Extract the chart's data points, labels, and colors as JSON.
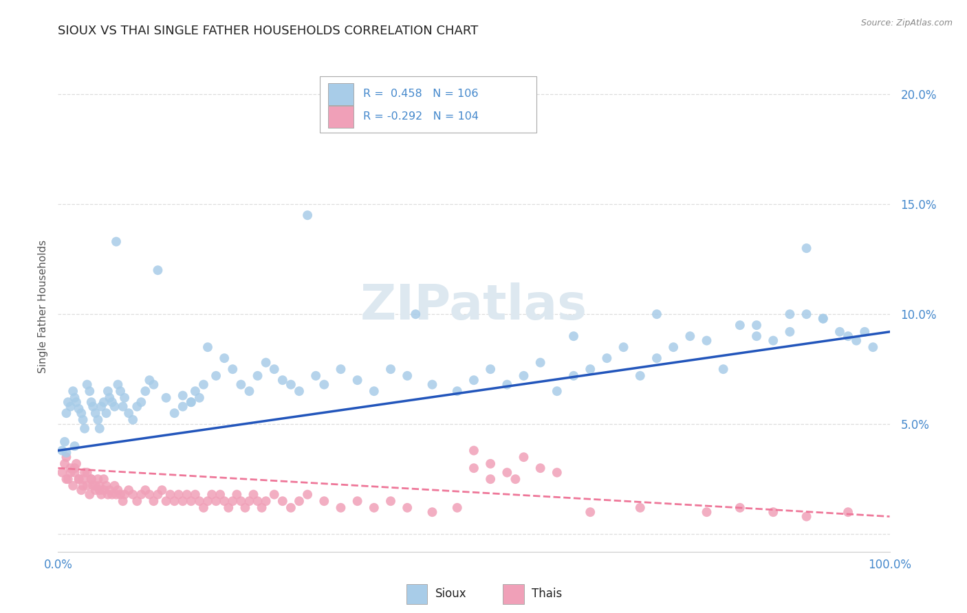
{
  "title": "SIOUX VS THAI SINGLE FATHER HOUSEHOLDS CORRELATION CHART",
  "source": "Source: ZipAtlas.com",
  "ylabel": "Single Father Households",
  "xlim": [
    0.0,
    1.0
  ],
  "ylim": [
    -0.008,
    0.215
  ],
  "sioux_R": 0.458,
  "sioux_N": 106,
  "thai_R": -0.292,
  "thai_N": 104,
  "sioux_color": "#a8cce8",
  "thai_color": "#f0a0b8",
  "sioux_edge_color": "#88aacc",
  "thai_edge_color": "#cc8898",
  "sioux_line_color": "#2255bb",
  "thai_line_color": "#ee7799",
  "watermark_color": "#dde8f0",
  "watermark": "ZIPatlas",
  "legend_sioux": "Sioux",
  "legend_thai": "Thais",
  "tick_color": "#4488cc",
  "title_color": "#222222",
  "source_color": "#888888",
  "ylabel_color": "#555555",
  "grid_color": "#dddddd",
  "sioux_line_start_y": 0.038,
  "sioux_line_end_y": 0.092,
  "thai_line_start_y": 0.03,
  "thai_line_end_y": 0.008,
  "sioux_x": [
    0.005,
    0.008,
    0.01,
    0.012,
    0.015,
    0.018,
    0.02,
    0.022,
    0.025,
    0.028,
    0.03,
    0.032,
    0.035,
    0.038,
    0.04,
    0.042,
    0.045,
    0.048,
    0.05,
    0.052,
    0.055,
    0.058,
    0.06,
    0.062,
    0.065,
    0.068,
    0.07,
    0.072,
    0.075,
    0.078,
    0.08,
    0.085,
    0.09,
    0.095,
    0.1,
    0.105,
    0.11,
    0.115,
    0.12,
    0.13,
    0.14,
    0.15,
    0.16,
    0.165,
    0.17,
    0.175,
    0.18,
    0.19,
    0.2,
    0.21,
    0.22,
    0.23,
    0.24,
    0.25,
    0.26,
    0.27,
    0.28,
    0.29,
    0.3,
    0.31,
    0.32,
    0.34,
    0.36,
    0.38,
    0.4,
    0.42,
    0.45,
    0.48,
    0.5,
    0.52,
    0.54,
    0.56,
    0.58,
    0.6,
    0.62,
    0.64,
    0.66,
    0.68,
    0.7,
    0.72,
    0.74,
    0.76,
    0.78,
    0.8,
    0.82,
    0.84,
    0.86,
    0.88,
    0.9,
    0.92,
    0.94,
    0.96,
    0.98,
    0.15,
    0.16,
    0.43,
    0.62,
    0.72,
    0.84,
    0.88,
    0.9,
    0.92,
    0.95,
    0.97,
    0.01,
    0.02
  ],
  "sioux_y": [
    0.038,
    0.042,
    0.055,
    0.06,
    0.058,
    0.065,
    0.062,
    0.06,
    0.057,
    0.055,
    0.052,
    0.048,
    0.068,
    0.065,
    0.06,
    0.058,
    0.055,
    0.052,
    0.048,
    0.058,
    0.06,
    0.055,
    0.065,
    0.062,
    0.06,
    0.058,
    0.133,
    0.068,
    0.065,
    0.058,
    0.062,
    0.055,
    0.052,
    0.058,
    0.06,
    0.065,
    0.07,
    0.068,
    0.12,
    0.062,
    0.055,
    0.058,
    0.06,
    0.065,
    0.062,
    0.068,
    0.085,
    0.072,
    0.08,
    0.075,
    0.068,
    0.065,
    0.072,
    0.078,
    0.075,
    0.07,
    0.068,
    0.065,
    0.145,
    0.072,
    0.068,
    0.075,
    0.07,
    0.065,
    0.075,
    0.072,
    0.068,
    0.065,
    0.07,
    0.075,
    0.068,
    0.072,
    0.078,
    0.065,
    0.072,
    0.075,
    0.08,
    0.085,
    0.072,
    0.08,
    0.085,
    0.09,
    0.088,
    0.075,
    0.095,
    0.09,
    0.088,
    0.1,
    0.13,
    0.098,
    0.092,
    0.088,
    0.085,
    0.063,
    0.06,
    0.1,
    0.09,
    0.1,
    0.095,
    0.092,
    0.1,
    0.098,
    0.09,
    0.092,
    0.037,
    0.04
  ],
  "thai_x": [
    0.005,
    0.008,
    0.01,
    0.012,
    0.015,
    0.018,
    0.02,
    0.022,
    0.025,
    0.028,
    0.03,
    0.032,
    0.035,
    0.038,
    0.04,
    0.042,
    0.045,
    0.048,
    0.05,
    0.052,
    0.055,
    0.058,
    0.06,
    0.062,
    0.065,
    0.068,
    0.07,
    0.072,
    0.075,
    0.078,
    0.08,
    0.085,
    0.09,
    0.095,
    0.1,
    0.105,
    0.11,
    0.115,
    0.12,
    0.125,
    0.13,
    0.135,
    0.14,
    0.145,
    0.15,
    0.155,
    0.16,
    0.165,
    0.17,
    0.175,
    0.18,
    0.185,
    0.19,
    0.195,
    0.2,
    0.205,
    0.21,
    0.215,
    0.22,
    0.225,
    0.23,
    0.235,
    0.24,
    0.245,
    0.25,
    0.26,
    0.27,
    0.28,
    0.29,
    0.3,
    0.32,
    0.34,
    0.36,
    0.38,
    0.4,
    0.42,
    0.45,
    0.48,
    0.5,
    0.52,
    0.54,
    0.56,
    0.6,
    0.64,
    0.5,
    0.52,
    0.55,
    0.58,
    0.7,
    0.78,
    0.82,
    0.86,
    0.9,
    0.95,
    0.01,
    0.015,
    0.02,
    0.025,
    0.03,
    0.035,
    0.04,
    0.045,
    0.05,
    0.055
  ],
  "thai_y": [
    0.028,
    0.032,
    0.035,
    0.025,
    0.03,
    0.022,
    0.028,
    0.032,
    0.025,
    0.02,
    0.025,
    0.028,
    0.022,
    0.018,
    0.025,
    0.022,
    0.02,
    0.025,
    0.022,
    0.018,
    0.02,
    0.022,
    0.018,
    0.02,
    0.018,
    0.022,
    0.018,
    0.02,
    0.018,
    0.015,
    0.018,
    0.02,
    0.018,
    0.015,
    0.018,
    0.02,
    0.018,
    0.015,
    0.018,
    0.02,
    0.015,
    0.018,
    0.015,
    0.018,
    0.015,
    0.018,
    0.015,
    0.018,
    0.015,
    0.012,
    0.015,
    0.018,
    0.015,
    0.018,
    0.015,
    0.012,
    0.015,
    0.018,
    0.015,
    0.012,
    0.015,
    0.018,
    0.015,
    0.012,
    0.015,
    0.018,
    0.015,
    0.012,
    0.015,
    0.018,
    0.015,
    0.012,
    0.015,
    0.012,
    0.015,
    0.012,
    0.01,
    0.012,
    0.03,
    0.025,
    0.028,
    0.035,
    0.028,
    0.01,
    0.038,
    0.032,
    0.025,
    0.03,
    0.012,
    0.01,
    0.012,
    0.01,
    0.008,
    0.01,
    0.025,
    0.028,
    0.03,
    0.025,
    0.022,
    0.028,
    0.025,
    0.022,
    0.02,
    0.025
  ]
}
